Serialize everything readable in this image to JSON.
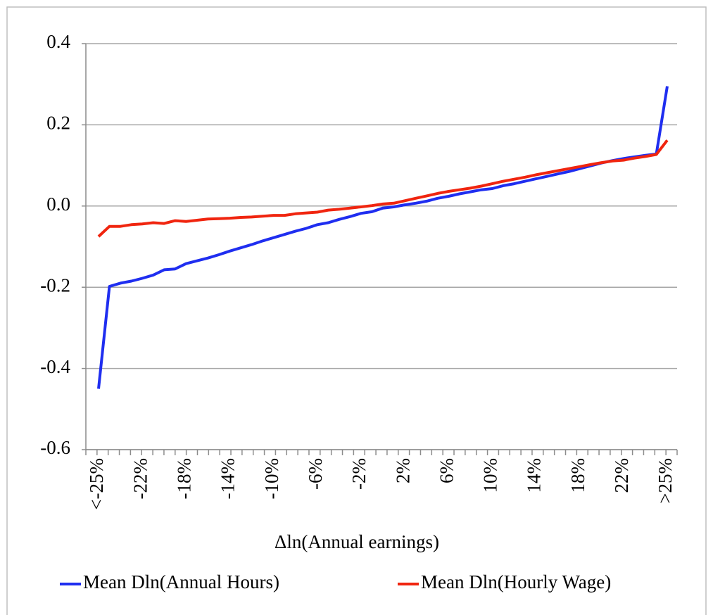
{
  "chart_data": {
    "type": "line",
    "x_label": "Δln(Annual earnings)",
    "categories": [
      "<-25%",
      null,
      null,
      null,
      "-22%",
      null,
      null,
      null,
      "-18%",
      null,
      null,
      null,
      "-14%",
      null,
      null,
      null,
      "-10%",
      null,
      null,
      null,
      "-6%",
      null,
      null,
      null,
      "-2%",
      null,
      null,
      null,
      "2%",
      null,
      null,
      null,
      "6%",
      null,
      null,
      null,
      "10%",
      null,
      null,
      null,
      "14%",
      null,
      null,
      null,
      "18%",
      null,
      null,
      null,
      "22%",
      null,
      null,
      null,
      ">25%"
    ],
    "series": [
      {
        "name": "Mean Dln(Annual Hours)",
        "color": "#1f2ef0",
        "values": [
          -0.45,
          -0.198,
          -0.19,
          -0.185,
          -0.178,
          -0.17,
          -0.157,
          -0.155,
          -0.142,
          -0.135,
          -0.128,
          -0.12,
          -0.111,
          -0.103,
          -0.095,
          -0.086,
          -0.078,
          -0.07,
          -0.062,
          -0.055,
          -0.046,
          -0.041,
          -0.033,
          -0.026,
          -0.018,
          -0.014,
          -0.005,
          -0.002,
          0.003,
          0.007,
          0.012,
          0.019,
          0.024,
          0.03,
          0.035,
          0.04,
          0.043,
          0.05,
          0.055,
          0.061,
          0.067,
          0.073,
          0.079,
          0.085,
          0.092,
          0.099,
          0.106,
          0.112,
          0.117,
          0.121,
          0.125,
          0.128,
          0.295
        ]
      },
      {
        "name": "Mean Dln(Hourly Wage)",
        "color": "#f0250f",
        "values": [
          -0.075,
          -0.05,
          -0.05,
          -0.046,
          -0.044,
          -0.041,
          -0.043,
          -0.036,
          -0.038,
          -0.035,
          -0.032,
          -0.031,
          -0.03,
          -0.028,
          -0.027,
          -0.025,
          -0.023,
          -0.023,
          -0.019,
          -0.017,
          -0.015,
          -0.01,
          -0.008,
          -0.005,
          -0.002,
          0.001,
          0.005,
          0.007,
          0.013,
          0.019,
          0.025,
          0.031,
          0.036,
          0.04,
          0.044,
          0.049,
          0.055,
          0.061,
          0.066,
          0.071,
          0.077,
          0.082,
          0.087,
          0.092,
          0.097,
          0.102,
          0.107,
          0.111,
          0.113,
          0.118,
          0.122,
          0.127,
          0.162
        ]
      }
    ],
    "ylim": [
      -0.6,
      0.4
    ],
    "yticks": [
      -0.6,
      -0.4,
      -0.2,
      {
        "value": 0,
        "label": "0.0"
      },
      0.2,
      0.4
    ],
    "grid": true,
    "legend": "bottom"
  }
}
